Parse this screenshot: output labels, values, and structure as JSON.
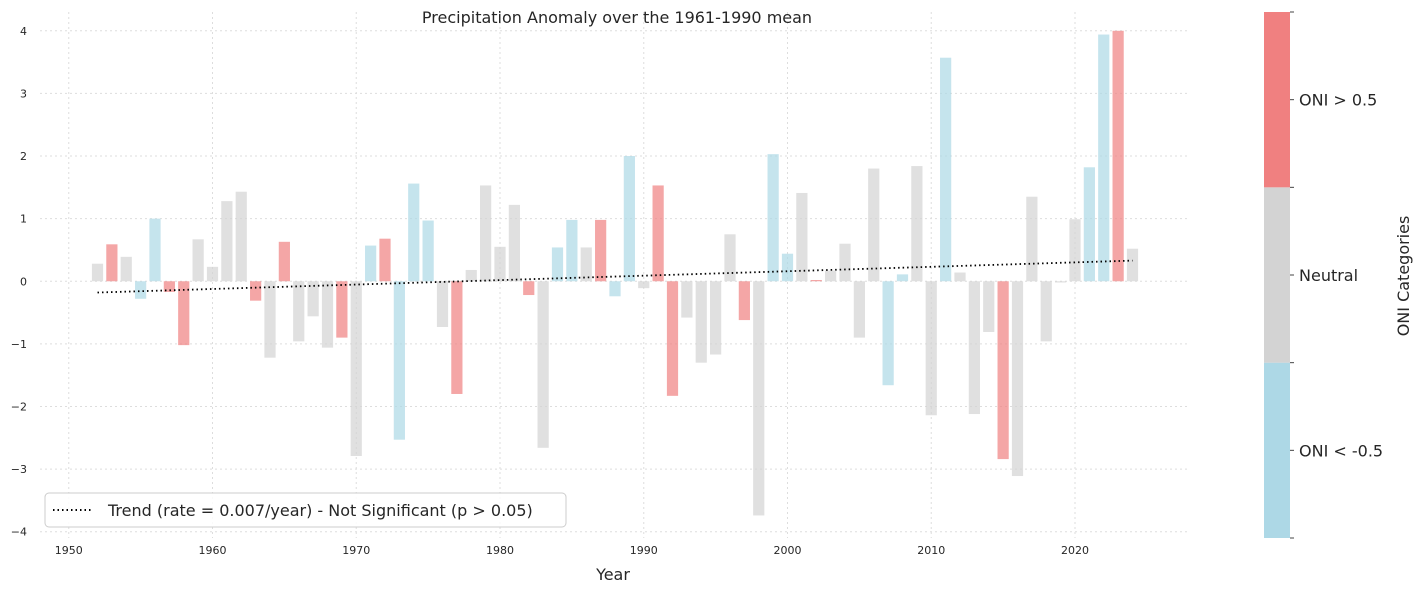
{
  "chart_data": {
    "type": "bar",
    "title": "Precipitation Anomaly over the 1961-1990 mean",
    "xlabel": "Year",
    "ylabel": "",
    "xlim": [
      1948,
      2028
    ],
    "ylim": [
      -4.1,
      4.3
    ],
    "x_ticks": [
      1950,
      1960,
      1970,
      1980,
      1990,
      2000,
      2010,
      2020
    ],
    "y_ticks": [
      -4,
      -3,
      -2,
      -1,
      0,
      1,
      2,
      3,
      4
    ],
    "grid": true,
    "bars": [
      {
        "year": 1952,
        "value": 0.28,
        "category": "Neutral"
      },
      {
        "year": 1953,
        "value": 0.59,
        "category": "ONI > 0.5"
      },
      {
        "year": 1954,
        "value": 0.39,
        "category": "Neutral"
      },
      {
        "year": 1955,
        "value": -0.28,
        "category": "ONI < -0.5"
      },
      {
        "year": 1956,
        "value": 1.0,
        "category": "ONI < -0.5"
      },
      {
        "year": 1957,
        "value": -0.17,
        "category": "ONI > 0.5"
      },
      {
        "year": 1958,
        "value": -1.02,
        "category": "ONI > 0.5"
      },
      {
        "year": 1959,
        "value": 0.67,
        "category": "Neutral"
      },
      {
        "year": 1960,
        "value": 0.23,
        "category": "Neutral"
      },
      {
        "year": 1961,
        "value": 1.28,
        "category": "Neutral"
      },
      {
        "year": 1962,
        "value": 1.43,
        "category": "Neutral"
      },
      {
        "year": 1963,
        "value": -0.31,
        "category": "ONI > 0.5"
      },
      {
        "year": 1964,
        "value": -1.22,
        "category": "Neutral"
      },
      {
        "year": 1965,
        "value": 0.63,
        "category": "ONI > 0.5"
      },
      {
        "year": 1966,
        "value": -0.96,
        "category": "Neutral"
      },
      {
        "year": 1967,
        "value": -0.56,
        "category": "Neutral"
      },
      {
        "year": 1968,
        "value": -1.06,
        "category": "Neutral"
      },
      {
        "year": 1969,
        "value": -0.9,
        "category": "ONI > 0.5"
      },
      {
        "year": 1970,
        "value": -2.79,
        "category": "Neutral"
      },
      {
        "year": 1971,
        "value": 0.57,
        "category": "ONI < -0.5"
      },
      {
        "year": 1972,
        "value": 0.68,
        "category": "ONI > 0.5"
      },
      {
        "year": 1973,
        "value": -2.53,
        "category": "ONI < -0.5"
      },
      {
        "year": 1974,
        "value": 1.56,
        "category": "ONI < -0.5"
      },
      {
        "year": 1975,
        "value": 0.97,
        "category": "ONI < -0.5"
      },
      {
        "year": 1976,
        "value": -0.73,
        "category": "Neutral"
      },
      {
        "year": 1977,
        "value": -1.8,
        "category": "ONI > 0.5"
      },
      {
        "year": 1978,
        "value": 0.18,
        "category": "Neutral"
      },
      {
        "year": 1979,
        "value": 1.53,
        "category": "Neutral"
      },
      {
        "year": 1980,
        "value": 0.55,
        "category": "Neutral"
      },
      {
        "year": 1981,
        "value": 1.22,
        "category": "Neutral"
      },
      {
        "year": 1982,
        "value": -0.22,
        "category": "ONI > 0.5"
      },
      {
        "year": 1983,
        "value": -2.66,
        "category": "Neutral"
      },
      {
        "year": 1984,
        "value": 0.54,
        "category": "ONI < -0.5"
      },
      {
        "year": 1985,
        "value": 0.98,
        "category": "ONI < -0.5"
      },
      {
        "year": 1986,
        "value": 0.54,
        "category": "Neutral"
      },
      {
        "year": 1987,
        "value": 0.98,
        "category": "ONI > 0.5"
      },
      {
        "year": 1988,
        "value": -0.24,
        "category": "ONI < -0.5"
      },
      {
        "year": 1989,
        "value": 2.0,
        "category": "ONI < -0.5"
      },
      {
        "year": 1990,
        "value": -0.11,
        "category": "Neutral"
      },
      {
        "year": 1991,
        "value": 1.53,
        "category": "ONI > 0.5"
      },
      {
        "year": 1992,
        "value": -1.83,
        "category": "ONI > 0.5"
      },
      {
        "year": 1993,
        "value": -0.58,
        "category": "Neutral"
      },
      {
        "year": 1994,
        "value": -1.3,
        "category": "Neutral"
      },
      {
        "year": 1995,
        "value": -1.17,
        "category": "Neutral"
      },
      {
        "year": 1996,
        "value": 0.75,
        "category": "Neutral"
      },
      {
        "year": 1997,
        "value": -0.62,
        "category": "ONI > 0.5"
      },
      {
        "year": 1998,
        "value": -3.74,
        "category": "Neutral"
      },
      {
        "year": 1999,
        "value": 2.03,
        "category": "ONI < -0.5"
      },
      {
        "year": 2000,
        "value": 0.44,
        "category": "ONI < -0.5"
      },
      {
        "year": 2001,
        "value": 1.41,
        "category": "Neutral"
      },
      {
        "year": 2002,
        "value": 0.02,
        "category": "ONI > 0.5"
      },
      {
        "year": 2003,
        "value": 0.17,
        "category": "Neutral"
      },
      {
        "year": 2004,
        "value": 0.6,
        "category": "Neutral"
      },
      {
        "year": 2005,
        "value": -0.9,
        "category": "Neutral"
      },
      {
        "year": 2006,
        "value": 1.8,
        "category": "Neutral"
      },
      {
        "year": 2007,
        "value": -1.66,
        "category": "ONI < -0.5"
      },
      {
        "year": 2008,
        "value": 0.11,
        "category": "ONI < -0.5"
      },
      {
        "year": 2009,
        "value": 1.84,
        "category": "Neutral"
      },
      {
        "year": 2010,
        "value": -2.14,
        "category": "Neutral"
      },
      {
        "year": 2011,
        "value": 3.57,
        "category": "ONI < -0.5"
      },
      {
        "year": 2012,
        "value": 0.14,
        "category": "Neutral"
      },
      {
        "year": 2013,
        "value": -2.12,
        "category": "Neutral"
      },
      {
        "year": 2014,
        "value": -0.81,
        "category": "Neutral"
      },
      {
        "year": 2015,
        "value": -2.84,
        "category": "ONI > 0.5"
      },
      {
        "year": 2016,
        "value": -3.11,
        "category": "Neutral"
      },
      {
        "year": 2017,
        "value": 1.35,
        "category": "Neutral"
      },
      {
        "year": 2018,
        "value": -0.96,
        "category": "Neutral"
      },
      {
        "year": 2019,
        "value": -0.02,
        "category": "Neutral"
      },
      {
        "year": 2020,
        "value": 0.99,
        "category": "Neutral"
      },
      {
        "year": 2021,
        "value": 1.82,
        "category": "ONI < -0.5"
      },
      {
        "year": 2022,
        "value": 3.94,
        "category": "ONI < -0.5"
      },
      {
        "year": 2023,
        "value": 4.0,
        "category": "ONI > 0.5"
      },
      {
        "year": 2024,
        "value": 0.52,
        "category": "Neutral"
      }
    ],
    "trend": {
      "x": [
        1952,
        2024
      ],
      "y": [
        -0.18,
        0.33
      ],
      "label": "Trend (rate = 0.007/year) - Not Significant (p > 0.05)"
    },
    "legend_position": "lower-left",
    "colorbar": {
      "title": "ONI Categories",
      "categories": [
        "ONI < -0.5",
        "Neutral",
        "ONI > 0.5"
      ],
      "colors": [
        "#add8e6",
        "#d3d3d3",
        "#f08080"
      ]
    }
  }
}
